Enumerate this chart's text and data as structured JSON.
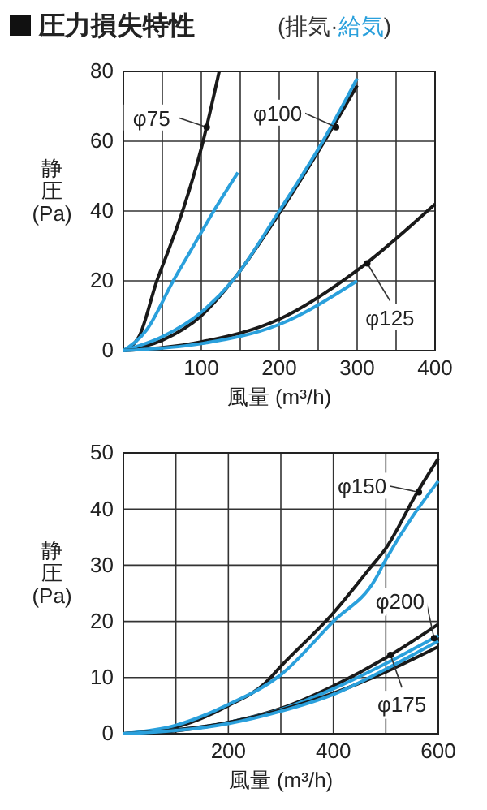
{
  "chart_data": [
    {
      "type": "line",
      "title": "圧力損失特性",
      "subtitle": "(排気·給気)",
      "xlabel": "風量 (m³/h)",
      "ylabel": "静圧(Pa)",
      "xlim": [
        0,
        400
      ],
      "xticks": [
        {
          "value": 50,
          "label": null
        },
        100,
        {
          "value": 150,
          "label": null
        },
        200,
        {
          "value": 250,
          "label": null
        },
        300,
        {
          "value": 350,
          "label": null
        },
        400
      ],
      "ylim": [
        0,
        80
      ],
      "yticks": [
        0,
        20,
        40,
        60,
        80
      ],
      "grid": true,
      "line_style": "solid",
      "marker": "none",
      "series": [
        {
          "color": "#1a1a1a",
          "x": [
            0,
            20,
            43,
            60,
            76,
            100,
            123
          ],
          "values": [
            0,
            4,
            20,
            30,
            40,
            58,
            80
          ]
        },
        {
          "color": "#2aa0dc",
          "x": [
            0,
            30,
            64,
            90,
            116,
            147
          ],
          "values": [
            0,
            6,
            20,
            30,
            40,
            51
          ]
        },
        {
          "color": "#1a1a1a",
          "x": [
            0,
            50,
            100,
            140,
            202,
            258,
            300
          ],
          "values": [
            0,
            3,
            10,
            20,
            40,
            60,
            76
          ]
        },
        {
          "color": "#2aa0dc",
          "x": [
            0,
            50,
            100,
            140,
            200,
            256,
            300
          ],
          "values": [
            0,
            4,
            11,
            20,
            40,
            60,
            78
          ]
        },
        {
          "color": "#1a1a1a",
          "x": [
            0,
            100,
            200,
            300,
            400
          ],
          "values": [
            0,
            2.5,
            9,
            23,
            42
          ]
        },
        {
          "color": "#2aa0dc",
          "x": [
            0,
            100,
            200,
            300
          ],
          "values": [
            0,
            2,
            7.5,
            20
          ]
        }
      ],
      "annotations": [
        {
          "text": "φ75",
          "x": 107,
          "y": 64
        },
        {
          "text": "φ100",
          "x": 273,
          "y": 64
        },
        {
          "text": "φ125",
          "x": 313,
          "y": 25
        }
      ]
    },
    {
      "type": "line",
      "xlabel": "風量 (m³/h)",
      "ylabel": "静圧(Pa)",
      "xlim": [
        0,
        600
      ],
      "xticks": [
        {
          "value": 100,
          "label": null
        },
        200,
        {
          "value": 300,
          "label": null
        },
        400,
        {
          "value": 500,
          "label": null
        },
        600
      ],
      "ylim": [
        0,
        50
      ],
      "yticks": [
        0,
        10,
        20,
        30,
        40,
        50
      ],
      "grid": true,
      "line_style": "solid",
      "marker": "none",
      "series": [
        {
          "color": "#1a1a1a",
          "x": [
            0,
            100,
            200,
            270,
            300,
            400,
            470,
            500,
            560,
            600
          ],
          "values": [
            0,
            1.2,
            5,
            9,
            12,
            21.5,
            29.5,
            33,
            43,
            49
          ]
        },
        {
          "color": "#2aa0dc",
          "x": [
            0,
            100,
            200,
            300,
            400,
            480,
            500,
            600
          ],
          "values": [
            0,
            1.5,
            5.2,
            10.5,
            20,
            27.5,
            31,
            45
          ]
        },
        {
          "color": "#1a1a1a",
          "x": [
            0,
            100,
            200,
            300,
            400,
            500,
            600
          ],
          "values": [
            0,
            0.5,
            2,
            4.5,
            8.5,
            13.5,
            19.5
          ]
        },
        {
          "color": "#2aa0dc",
          "x": [
            0,
            200,
            300,
            400,
            500,
            600
          ],
          "values": [
            0,
            2,
            4.3,
            8,
            12.5,
            17.5
          ]
        },
        {
          "color": "#1a1a1a",
          "x": [
            0,
            200,
            300,
            400,
            500,
            600
          ],
          "values": [
            0,
            2,
            4.2,
            7.2,
            11,
            15.5
          ]
        },
        {
          "color": "#2aa0dc",
          "x": [
            0,
            200,
            300,
            400,
            500,
            600
          ],
          "values": [
            0,
            1.8,
            4,
            7,
            11.5,
            16.5
          ]
        }
      ],
      "annotations": [
        {
          "text": "φ150",
          "x": 563,
          "y": 43
        },
        {
          "text": "φ200",
          "x": 592,
          "y": 17
        },
        {
          "text": "φ175",
          "x": 509,
          "y": 14
        }
      ]
    }
  ]
}
